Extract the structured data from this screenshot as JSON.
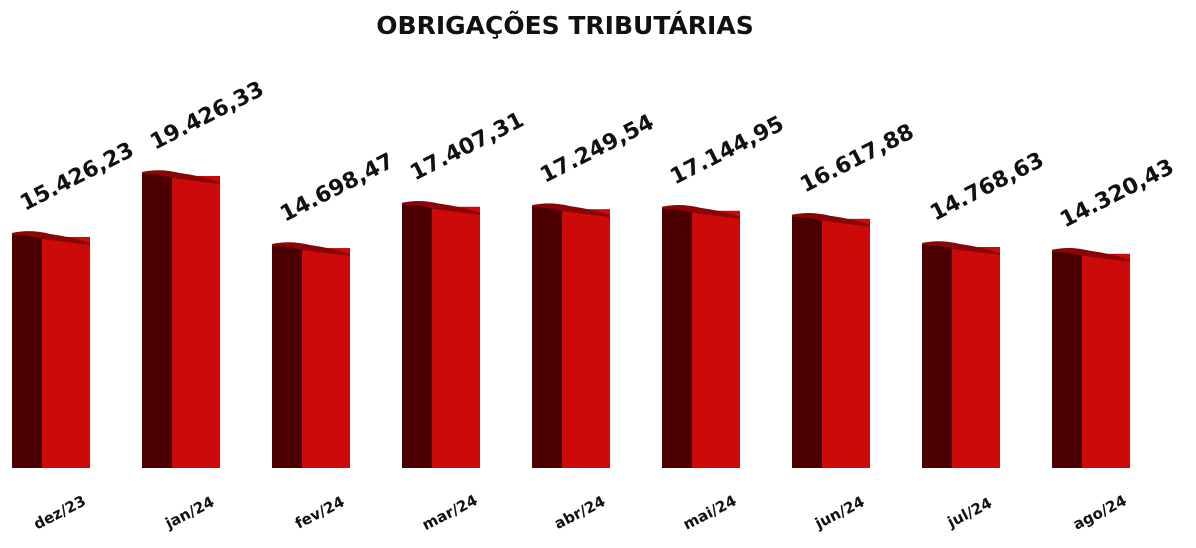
{
  "chart_data": {
    "type": "bar",
    "title": "OBRIGAÇÕES TRIBUTÁRIAS",
    "categories": [
      "dez/23",
      "jan/24",
      "fev/24",
      "mar/24",
      "abr/24",
      "mai/24",
      "jun/24",
      "jul/24",
      "ago/24"
    ],
    "values": [
      15426.23,
      19426.33,
      14698.47,
      17407.31,
      17249.54,
      17144.95,
      16617.88,
      14768.63,
      14320.43
    ],
    "value_labels": [
      "15.426,23",
      "19.426,33",
      "14.698,47",
      "17.407,31",
      "17.249,54",
      "17.144,95",
      "16.617,88",
      "14.768,63",
      "14.320,43"
    ],
    "color": "#cc0a0a"
  }
}
